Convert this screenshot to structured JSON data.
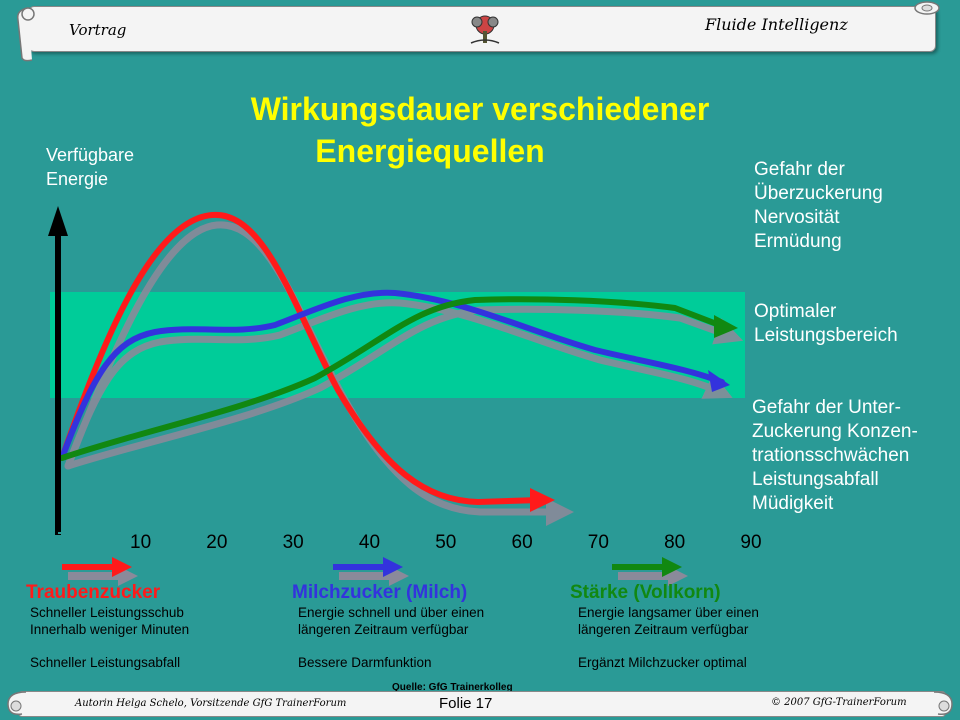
{
  "header": {
    "left_label": "Vortrag",
    "right_label": "Fluide Intelligenz",
    "logo": "tree-emblem-icon"
  },
  "title_line1": "Wirkungsdauer verschiedener",
  "title_line2": "Energiequellen",
  "yaxis_label_line1": "Verfügbare",
  "yaxis_label_line2": "Energie",
  "right_labels": {
    "top": [
      "Gefahr der",
      "Überzuckerung",
      "Nervosität",
      "Ermüdung"
    ],
    "middle": [
      "Optimaler",
      "Leistungsbereich"
    ],
    "bottom": [
      "Gefahr der Unter-",
      "Zuckerung Konzen-",
      "trationsschwächen",
      "Leistungsabfall",
      "Müdigkeit"
    ]
  },
  "chart_data": {
    "type": "line",
    "x_ticks": [
      "10",
      "20",
      "30",
      "40",
      "50",
      "60",
      "70",
      "80",
      "90"
    ],
    "series": [
      {
        "name": "Traubenzucker",
        "color": "#ff1a1a"
      },
      {
        "name": "Milchzucker (Milch)",
        "color": "#3333dd"
      },
      {
        "name": "Stärke (Vollkorn)",
        "color": "#118811"
      }
    ],
    "optimal_band_color": "#00cc99"
  },
  "sources": [
    {
      "title": "Traubenzucker",
      "color": "#ff1a1a",
      "line1": "Schneller Leistungsschub",
      "line2": "Innerhalb weniger Minuten",
      "line3": "Schneller Leistungsabfall"
    },
    {
      "title": "Milchzucker (Milch)",
      "color": "#3333dd",
      "line1": "Energie schnell und über einen",
      "line2": "längeren Zeitraum verfügbar",
      "line3": "Bessere Darmfunktion"
    },
    {
      "title": "Stärke (Vollkorn)",
      "color": "#118811",
      "line1": "Energie langsamer über einen",
      "line2": "längeren Zeitraum verfügbar",
      "line3": "Ergänzt Milchzucker optimal"
    }
  ],
  "source_note": "Quelle: GfG Trainerkolleg",
  "footer": {
    "author": "Autorin Helga Schelo, Vorsitzende GfG TrainerForum",
    "slide": "Folie 17",
    "copyright": "© 2007 GfG-TrainerForum"
  }
}
